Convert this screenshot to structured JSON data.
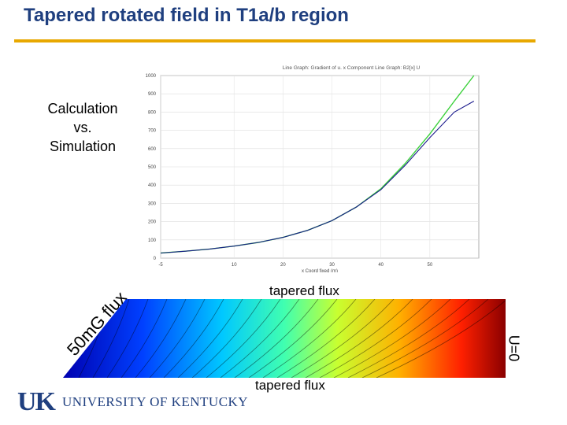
{
  "slide": {
    "title": "Tapered rotated field in T1a/b region",
    "label_calc": "Calculation\nvs.\nSimulation",
    "label_flux_top": "tapered flux",
    "label_flux_bottom": "tapered flux",
    "label_u0": "U=0",
    "label_diagonal": "50mG flux",
    "logo_mark": "UK",
    "logo_name": "UNIVERSITY OF KENTUCKY"
  },
  "colors": {
    "title": "#1f3f7f",
    "rule": "#e8a800",
    "sim_series": "#3bd13b",
    "calc_series": "#1a1a8c"
  },
  "chart_data": {
    "type": "line",
    "title": "Line Graph: Gradient of u. x Component Line Graph: B2[x] U",
    "xlabel": "x Coord fixed (m)",
    "ylabel": "",
    "ylim": [
      0,
      1000
    ],
    "yticks": [
      0,
      100,
      200,
      300,
      400,
      500,
      600,
      700,
      800,
      900,
      1000
    ],
    "xticks": [
      "-5",
      "10",
      "20",
      "30",
      "40",
      "50"
    ],
    "xlim": [
      -5,
      60
    ],
    "grid": true,
    "series": [
      {
        "name": "",
        "color": "#3bd13b",
        "x": [
          -5,
          0,
          5,
          10,
          15,
          20,
          25,
          30,
          35,
          40,
          45,
          50,
          55,
          59
        ],
        "y": [
          28,
          38,
          50,
          66,
          86,
          114,
          152,
          205,
          280,
          380,
          520,
          680,
          860,
          1000
        ]
      },
      {
        "name": "",
        "color": "#1a1a8c",
        "x": [
          -5,
          0,
          5,
          10,
          15,
          20,
          25,
          30,
          35,
          40,
          45,
          50,
          55,
          59
        ],
        "y": [
          28,
          38,
          50,
          66,
          86,
          114,
          152,
          205,
          280,
          375,
          510,
          660,
          800,
          860
        ]
      }
    ]
  }
}
